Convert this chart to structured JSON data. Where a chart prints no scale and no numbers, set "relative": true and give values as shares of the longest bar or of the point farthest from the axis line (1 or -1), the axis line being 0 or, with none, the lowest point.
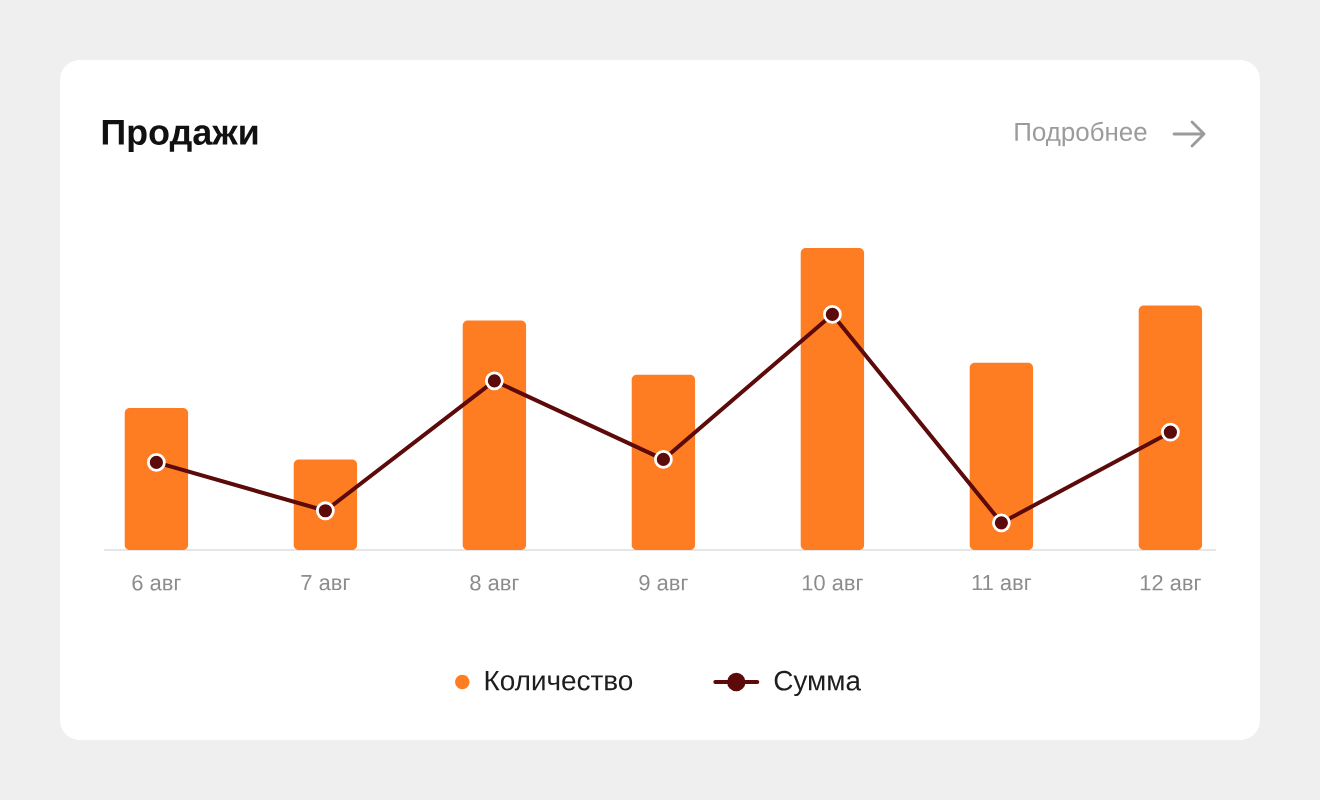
{
  "chart_data": {
    "type": "bar",
    "title": "Продажи",
    "annotations": [
      "Подробнее"
    ],
    "categories": [
      "6 авг",
      "7 авг",
      "8 авг",
      "9 авг",
      "10 авг",
      "11 авг",
      "12 авг"
    ],
    "relative": true,
    "legend": "bottom",
    "series": [
      {
        "name": "Количество",
        "color": "#ff7d22",
        "values": [
          0.47,
          0.3,
          0.76,
          0.58,
          1,
          0.62,
          0.81
        ]
      },
      {
        "name": "Сумма",
        "type": "line",
        "color": "#5c0a0a",
        "marker": "circle",
        "values": [
          0.29,
          0.13,
          0.56,
          0.3,
          0.78,
          0.09,
          0.39
        ]
      }
    ]
  }
}
